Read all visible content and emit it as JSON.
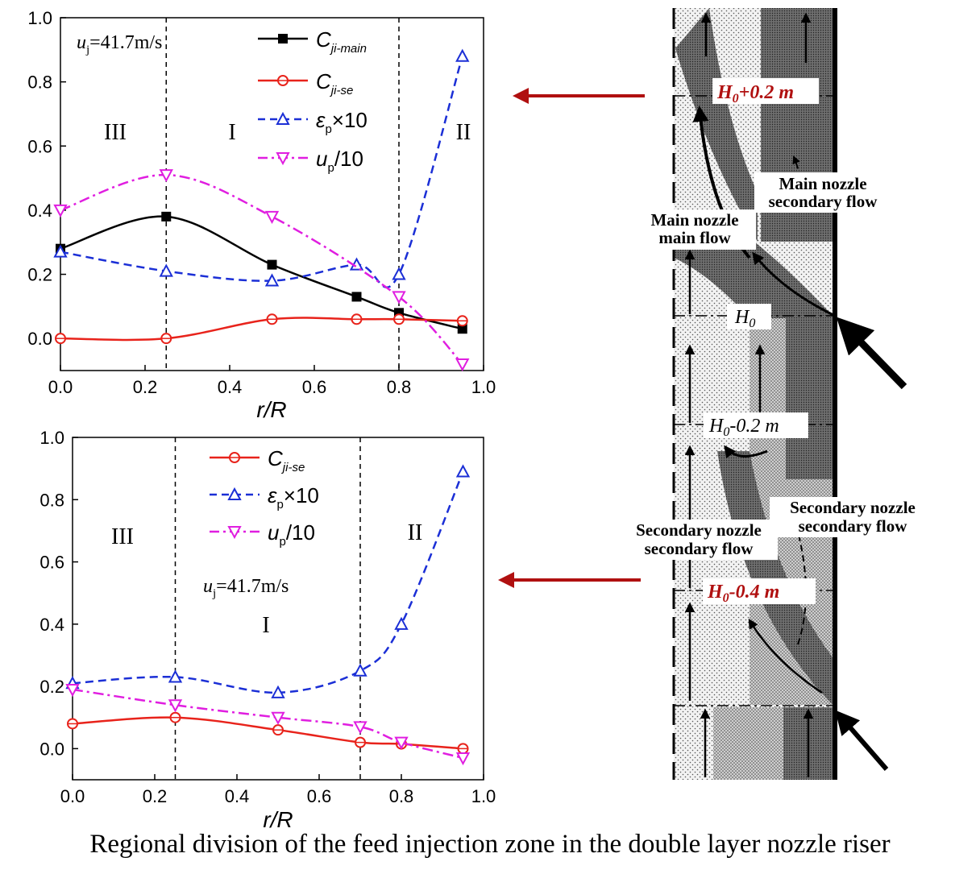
{
  "caption": "Regional division of the feed injection zone in the double layer nozzle riser",
  "chart_data": [
    {
      "type": "line",
      "xlabel": "r/R",
      "ylabel": "",
      "xlim": [
        0,
        1.0
      ],
      "ylim": [
        -0.1,
        1.0
      ],
      "xticks": [
        "0.0",
        "0.2",
        "0.4",
        "0.6",
        "0.8",
        "1.0"
      ],
      "yticks": [
        "0.0",
        "0.2",
        "0.4",
        "0.6",
        "0.8",
        "1.0"
      ],
      "vlines": [
        0.25,
        0.8
      ],
      "regions": [
        {
          "label": "III",
          "x": 0.1
        },
        {
          "label": "I",
          "x": 0.5
        },
        {
          "label": "II",
          "x": 0.9
        }
      ],
      "annotation": {
        "prefix": "u",
        "sub": "j",
        "suffix": "=41.7m/s"
      },
      "legend_position": "top-right",
      "series": [
        {
          "name": "C",
          "name_sub": "ji-main",
          "color": "#000000",
          "style": "solid",
          "marker": "square",
          "x": [
            0,
            0.25,
            0.5,
            0.7,
            0.8,
            0.95
          ],
          "values": [
            0.28,
            0.38,
            0.23,
            0.13,
            0.08,
            0.03
          ]
        },
        {
          "name": "C",
          "name_sub": "ji-se",
          "color": "#e8231b",
          "style": "solid",
          "marker": "circle",
          "x": [
            0,
            0.25,
            0.5,
            0.7,
            0.8,
            0.95
          ],
          "values": [
            0.0,
            0.0,
            0.06,
            0.06,
            0.06,
            0.055
          ]
        },
        {
          "name": "ε",
          "name_sub": "p",
          "name_suffix": "×10",
          "color": "#1b2fd6",
          "style": "dashed",
          "marker": "triangle-up",
          "x": [
            0,
            0.25,
            0.5,
            0.7,
            0.8,
            0.95
          ],
          "values": [
            0.27,
            0.21,
            0.18,
            0.23,
            0.2,
            0.88
          ]
        },
        {
          "name": "u",
          "name_sub": "p",
          "name_suffix": "/10",
          "color": "#e01ee0",
          "style": "dashdot",
          "marker": "triangle-down",
          "x": [
            0,
            0.25,
            0.5,
            0.8,
            0.95
          ],
          "values": [
            0.4,
            0.51,
            0.38,
            0.13,
            -0.08
          ]
        }
      ]
    },
    {
      "type": "line",
      "xlabel": "r/R",
      "ylabel": "",
      "xlim": [
        0,
        1.0
      ],
      "ylim": [
        -0.1,
        1.0
      ],
      "xticks": [
        "0.0",
        "0.2",
        "0.4",
        "0.6",
        "0.8",
        "1.0"
      ],
      "yticks": [
        "0.0",
        "0.2",
        "0.4",
        "0.6",
        "0.8",
        "1.0"
      ],
      "vlines": [
        0.25,
        0.7
      ],
      "regions": [
        {
          "label": "III",
          "x": 0.12
        },
        {
          "label": "I",
          "x": 0.47
        },
        {
          "label": "II",
          "x": 0.83
        }
      ],
      "annotation": {
        "prefix": "u",
        "sub": "j",
        "suffix": "=41.7m/s"
      },
      "legend_position": "top-center",
      "series": [
        {
          "name": "C",
          "name_sub": "ji-se",
          "color": "#e8231b",
          "style": "solid",
          "marker": "circle",
          "x": [
            0,
            0.25,
            0.5,
            0.7,
            0.8,
            0.95
          ],
          "values": [
            0.08,
            0.1,
            0.06,
            0.02,
            0.015,
            0.0
          ]
        },
        {
          "name": "ε",
          "name_sub": "p",
          "name_suffix": "×10",
          "color": "#1b2fd6",
          "style": "dashed",
          "marker": "triangle-up",
          "x": [
            0,
            0.25,
            0.5,
            0.7,
            0.8,
            0.95
          ],
          "values": [
            0.21,
            0.23,
            0.18,
            0.25,
            0.4,
            0.89
          ]
        },
        {
          "name": "u",
          "name_sub": "p",
          "name_suffix": "/10",
          "color": "#e01ee0",
          "style": "dashdot",
          "marker": "triangle-down",
          "x": [
            0,
            0.25,
            0.5,
            0.7,
            0.8,
            0.95
          ],
          "values": [
            0.19,
            0.14,
            0.1,
            0.07,
            0.02,
            -0.03
          ]
        }
      ]
    }
  ],
  "schematic": {
    "level_labels": [
      {
        "prefix": "H",
        "sub": "0",
        "suffix": "+0.2 m",
        "highlight": true
      },
      {
        "prefix": "H",
        "sub": "0",
        "suffix": "",
        "highlight": false
      },
      {
        "prefix": "H",
        "sub": "0",
        "suffix": "-0.2 m",
        "highlight": false
      },
      {
        "prefix": "H",
        "sub": "0",
        "suffix": "-0.4 m",
        "highlight": true
      }
    ],
    "flow_labels": [
      {
        "line1": "Main nozzle",
        "line2": "secondary flow"
      },
      {
        "line1": "Main nozzle",
        "line2": "main flow"
      },
      {
        "line1": "Secondary  nozzle",
        "line2": "secondary flow"
      },
      {
        "line1": "Secondary nozzle",
        "line2": "secondary flow"
      }
    ],
    "pointer_color": "#b01010"
  }
}
